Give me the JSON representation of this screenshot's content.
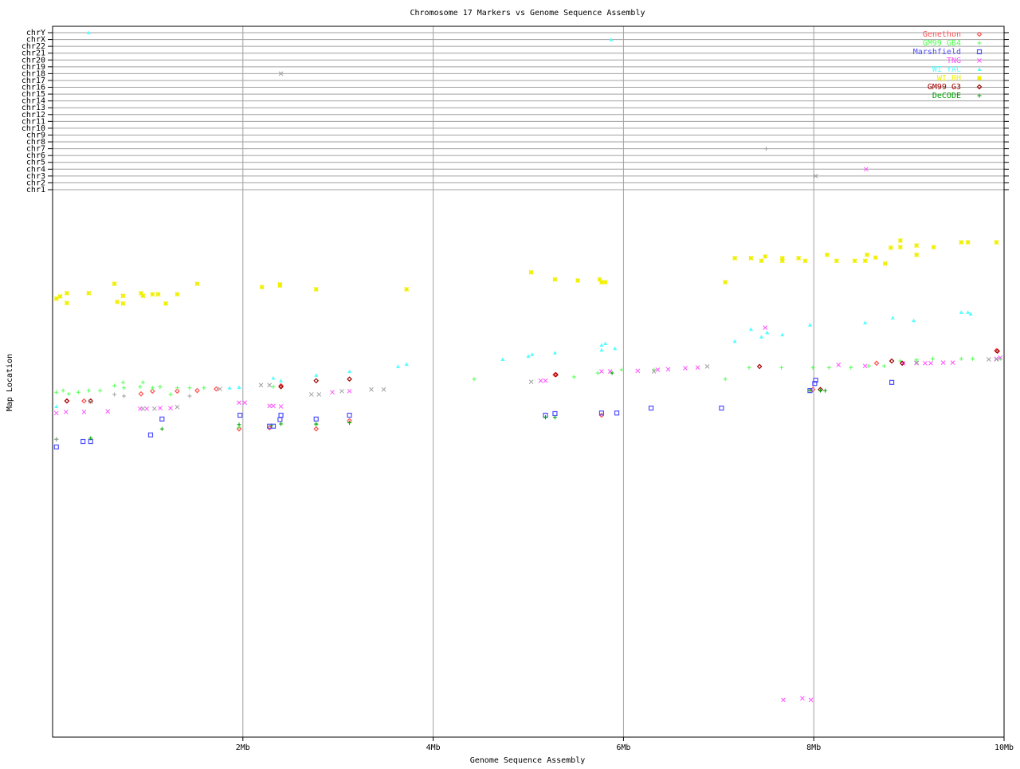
{
  "chart_data": {
    "type": "scatter",
    "title": "Chromosome 17 Markers vs Genome Sequence Assembly",
    "xlabel": "Genome Sequence Assembly",
    "ylabel": "Map Location",
    "xlim": [
      0,
      10
    ],
    "x_unit": "Mb",
    "x_ticks": [
      "2Mb",
      "4Mb",
      "6Mb",
      "8Mb",
      "10Mb"
    ],
    "x_tick_values": [
      2,
      4,
      6,
      8,
      10
    ],
    "ylim": [
      0,
      100
    ],
    "chromosome_rows": [
      "chrY",
      "chrX",
      "chr22",
      "chr21",
      "chr20",
      "chr19",
      "chr18",
      "chr17",
      "chr16",
      "chr15",
      "chr14",
      "chr13",
      "chr12",
      "chr11",
      "chr10",
      "chr9",
      "chr8",
      "chr7",
      "chr6",
      "chr5",
      "chr4",
      "chr3",
      "chr2",
      "chr1"
    ],
    "grid": true,
    "legend_position": "top-right",
    "series": [
      {
        "name": "Genethon",
        "color": "#ff5050",
        "marker": "diamond",
        "points": [
          [
            0.15,
            61.4
          ],
          [
            0.33,
            61.4
          ],
          [
            0.93,
            62.7
          ],
          [
            1.05,
            63.2
          ],
          [
            1.31,
            63.2
          ],
          [
            1.52,
            63.3
          ],
          [
            1.72,
            63.6
          ],
          [
            1.96,
            56.3
          ],
          [
            2.28,
            56.5
          ],
          [
            2.4,
            64.2
          ],
          [
            2.77,
            56.3
          ],
          [
            3.12,
            57.8
          ],
          [
            5.28,
            66.2
          ],
          [
            5.77,
            58.8
          ],
          [
            7.99,
            63.5
          ],
          [
            8.66,
            68.3
          ],
          [
            9.92,
            70.6
          ]
        ]
      },
      {
        "name": "GM99 GB4",
        "color": "#50ff50",
        "marker": "plus",
        "points": [
          [
            0.04,
            63.0
          ],
          [
            0.11,
            63.3
          ],
          [
            0.17,
            62.7
          ],
          [
            0.27,
            63.0
          ],
          [
            0.38,
            63.3
          ],
          [
            0.5,
            63.3
          ],
          [
            0.65,
            64.2
          ],
          [
            0.74,
            64.8
          ],
          [
            0.75,
            63.8
          ],
          [
            0.92,
            64.0
          ],
          [
            0.95,
            64.8
          ],
          [
            1.05,
            63.8
          ],
          [
            1.13,
            64.0
          ],
          [
            1.24,
            62.6
          ],
          [
            1.31,
            63.8
          ],
          [
            1.44,
            63.8
          ],
          [
            1.59,
            63.8
          ],
          [
            1.96,
            56.6
          ],
          [
            2.32,
            64.0
          ],
          [
            2.77,
            57.1
          ],
          [
            3.12,
            57.5
          ],
          [
            4.43,
            65.4
          ],
          [
            5.18,
            58.5
          ],
          [
            5.48,
            65.8
          ],
          [
            5.73,
            66.5
          ],
          [
            5.98,
            67.1
          ],
          [
            6.32,
            67.1
          ],
          [
            7.07,
            65.4
          ],
          [
            7.32,
            67.5
          ],
          [
            7.66,
            67.5
          ],
          [
            7.99,
            67.5
          ],
          [
            8.16,
            67.5
          ],
          [
            8.39,
            67.5
          ],
          [
            8.58,
            67.8
          ],
          [
            8.74,
            67.8
          ],
          [
            8.91,
            68.7
          ],
          [
            9.08,
            68.9
          ],
          [
            9.25,
            69.1
          ],
          [
            9.55,
            69.1
          ],
          [
            9.67,
            69.1
          ],
          [
            9.96,
            69.1
          ]
        ]
      },
      {
        "name": "Marshfield",
        "color": "#5050ff",
        "marker": "square",
        "points": [
          [
            0.04,
            53.0
          ],
          [
            0.32,
            54.0
          ],
          [
            0.4,
            54.0
          ],
          [
            1.03,
            55.2
          ],
          [
            1.15,
            58.1
          ],
          [
            1.97,
            58.8
          ],
          [
            2.28,
            56.8
          ],
          [
            2.32,
            56.8
          ],
          [
            2.39,
            58.0
          ],
          [
            2.4,
            58.8
          ],
          [
            2.77,
            58.1
          ],
          [
            3.12,
            58.8
          ],
          [
            5.18,
            58.8
          ],
          [
            5.28,
            59.1
          ],
          [
            5.77,
            59.2
          ],
          [
            5.93,
            59.2
          ],
          [
            6.29,
            60.1
          ],
          [
            7.03,
            60.1
          ],
          [
            7.96,
            63.3
          ],
          [
            8.01,
            64.6
          ],
          [
            8.02,
            65.2
          ],
          [
            8.82,
            64.8
          ]
        ]
      },
      {
        "name": "TNG",
        "color": "#ff50ff",
        "marker": "cross",
        "points": [
          [
            0.04,
            59.2
          ],
          [
            0.14,
            59.4
          ],
          [
            0.33,
            59.4
          ],
          [
            0.58,
            59.5
          ],
          [
            0.92,
            60.0
          ],
          [
            0.99,
            60.0
          ],
          [
            1.13,
            60.1
          ],
          [
            1.24,
            60.1
          ],
          [
            1.96,
            61.1
          ],
          [
            2.02,
            61.1
          ],
          [
            2.28,
            60.5
          ],
          [
            2.32,
            60.5
          ],
          [
            2.4,
            60.4
          ],
          [
            2.94,
            63.0
          ],
          [
            3.12,
            63.2
          ],
          [
            5.13,
            65.1
          ],
          [
            5.18,
            65.1
          ],
          [
            5.77,
            66.8
          ],
          [
            5.86,
            66.8
          ],
          [
            6.15,
            66.9
          ],
          [
            6.36,
            67.1
          ],
          [
            6.47,
            67.2
          ],
          [
            6.65,
            67.4
          ],
          [
            6.78,
            67.5
          ],
          [
            7.49,
            74.8
          ],
          [
            8.26,
            68.0
          ],
          [
            8.54,
            67.8
          ],
          [
            8.94,
            68.3
          ],
          [
            9.08,
            68.3
          ],
          [
            9.17,
            68.3
          ],
          [
            9.23,
            68.3
          ],
          [
            9.36,
            68.4
          ],
          [
            9.46,
            68.4
          ],
          [
            9.92,
            69.1
          ],
          [
            9.96,
            69.3
          ],
          [
            7.68,
            6.8
          ],
          [
            7.88,
            7.1
          ],
          [
            7.97,
            6.8
          ]
        ],
        "chromosome_hits": [
          [
            8.55,
            "chr4"
          ]
        ]
      },
      {
        "name": "WI YAC",
        "color": "#50ffff",
        "marker": "triangle",
        "points": [
          [
            0.04,
            60.4
          ],
          [
            1.86,
            63.8
          ],
          [
            1.96,
            63.9
          ],
          [
            2.32,
            65.6
          ],
          [
            2.4,
            65.1
          ],
          [
            2.77,
            66.1
          ],
          [
            3.12,
            66.8
          ],
          [
            3.63,
            67.7
          ],
          [
            3.72,
            68.1
          ],
          [
            4.73,
            69.0
          ],
          [
            5.0,
            69.6
          ],
          [
            5.04,
            69.9
          ],
          [
            5.28,
            70.2
          ],
          [
            5.77,
            70.7
          ],
          [
            5.77,
            71.6
          ],
          [
            5.81,
            71.9
          ],
          [
            5.91,
            71.0
          ],
          [
            7.17,
            72.3
          ],
          [
            7.34,
            74.5
          ],
          [
            7.45,
            73.1
          ],
          [
            7.51,
            73.9
          ],
          [
            7.67,
            73.5
          ],
          [
            7.96,
            75.3
          ],
          [
            8.54,
            75.7
          ],
          [
            8.83,
            76.6
          ],
          [
            9.05,
            76.1
          ],
          [
            9.55,
            77.6
          ],
          [
            9.62,
            77.6
          ],
          [
            9.65,
            77.3
          ]
        ],
        "chromosome_hits": [
          [
            0.38,
            "chrY"
          ],
          [
            5.87,
            "chrX"
          ]
        ]
      },
      {
        "name": "WI RH",
        "color": "#f0f000",
        "marker": "star",
        "points": [
          [
            0.04,
            80.1
          ],
          [
            0.08,
            80.5
          ],
          [
            0.15,
            81.1
          ],
          [
            0.15,
            79.3
          ],
          [
            0.38,
            81.1
          ],
          [
            0.65,
            82.8
          ],
          [
            0.68,
            79.5
          ],
          [
            0.74,
            80.6
          ],
          [
            0.74,
            79.2
          ],
          [
            0.93,
            81.1
          ],
          [
            0.95,
            80.6
          ],
          [
            1.05,
            80.9
          ],
          [
            1.11,
            80.9
          ],
          [
            1.19,
            79.2
          ],
          [
            1.31,
            80.9
          ],
          [
            1.52,
            82.8
          ],
          [
            2.2,
            82.2
          ],
          [
            2.39,
            82.7
          ],
          [
            2.39,
            82.5
          ],
          [
            2.77,
            81.8
          ],
          [
            3.72,
            81.8
          ],
          [
            5.03,
            84.9
          ],
          [
            5.28,
            83.6
          ],
          [
            5.52,
            83.4
          ],
          [
            5.75,
            83.6
          ],
          [
            5.77,
            83.1
          ],
          [
            5.81,
            83.1
          ],
          [
            7.07,
            83.1
          ],
          [
            7.17,
            87.5
          ],
          [
            7.34,
            87.5
          ],
          [
            7.45,
            87.0
          ],
          [
            7.49,
            87.8
          ],
          [
            7.67,
            87.5
          ],
          [
            7.67,
            87.0
          ],
          [
            7.84,
            87.5
          ],
          [
            7.91,
            87.0
          ],
          [
            8.14,
            88.1
          ],
          [
            8.24,
            87.0
          ],
          [
            8.43,
            87.0
          ],
          [
            8.54,
            87.0
          ],
          [
            8.56,
            88.1
          ],
          [
            8.65,
            87.6
          ],
          [
            8.75,
            86.5
          ],
          [
            8.81,
            89.4
          ],
          [
            8.91,
            89.5
          ],
          [
            8.91,
            90.7
          ],
          [
            9.08,
            89.8
          ],
          [
            9.08,
            88.1
          ],
          [
            9.26,
            89.5
          ],
          [
            9.55,
            90.4
          ],
          [
            9.62,
            90.4
          ],
          [
            9.92,
            90.4
          ]
        ]
      },
      {
        "name": "GM99 G3",
        "color": "#a00000",
        "marker": "diamond",
        "points": [
          [
            0.15,
            61.4
          ],
          [
            0.4,
            61.4
          ],
          [
            2.4,
            64.0
          ],
          [
            2.77,
            65.1
          ],
          [
            3.12,
            65.4
          ],
          [
            5.29,
            66.2
          ],
          [
            7.43,
            67.7
          ],
          [
            8.07,
            63.5
          ],
          [
            8.82,
            68.7
          ],
          [
            8.93,
            68.3
          ],
          [
            9.93,
            70.5
          ]
        ]
      },
      {
        "name": "DeCODE",
        "color": "#00a000",
        "marker": "plus",
        "points": [
          [
            0.04,
            54.4
          ],
          [
            0.4,
            54.6
          ],
          [
            1.15,
            56.3
          ],
          [
            1.96,
            57.1
          ],
          [
            2.3,
            56.9
          ],
          [
            2.4,
            57.2
          ],
          [
            2.77,
            57.2
          ],
          [
            3.12,
            57.4
          ],
          [
            5.18,
            58.4
          ],
          [
            5.28,
            58.4
          ],
          [
            5.88,
            66.5
          ],
          [
            7.96,
            63.3
          ],
          [
            8.07,
            63.3
          ],
          [
            8.12,
            63.3
          ]
        ]
      },
      {
        "color": "#a0a0a0",
        "marker": "cross",
        "points": [
          [
            0.4,
            61.3
          ],
          [
            0.95,
            60.0
          ],
          [
            1.07,
            60.0
          ],
          [
            1.31,
            60.3
          ],
          [
            1.76,
            63.6
          ],
          [
            2.19,
            64.3
          ],
          [
            2.28,
            64.3
          ],
          [
            2.72,
            62.6
          ],
          [
            2.8,
            62.6
          ],
          [
            3.04,
            63.2
          ],
          [
            3.35,
            63.5
          ],
          [
            3.48,
            63.5
          ],
          [
            5.03,
            64.9
          ],
          [
            6.32,
            66.8
          ],
          [
            6.88,
            67.7
          ],
          [
            9.08,
            68.4
          ],
          [
            9.84,
            69.0
          ],
          [
            9.92,
            69.0
          ]
        ],
        "chromosome_hits": [
          [
            2.4,
            "chr18"
          ],
          [
            8.02,
            "chr3"
          ]
        ]
      },
      {
        "color": "#a0a0a0",
        "marker": "plus",
        "points": [
          [
            0.04,
            54.4
          ],
          [
            0.65,
            62.6
          ],
          [
            0.75,
            62.3
          ],
          [
            1.44,
            62.3
          ]
        ],
        "chromosome_hits": [
          [
            7.5,
            "chr7"
          ]
        ]
      }
    ]
  }
}
